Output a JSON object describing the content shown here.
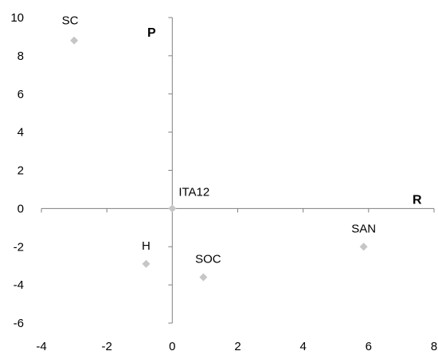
{
  "chart_data": {
    "type": "scatter",
    "title": "",
    "xlabel": "R",
    "ylabel": "P",
    "xlim": [
      -4,
      8
    ],
    "ylim": [
      -6,
      10
    ],
    "x_ticks": [
      "-4",
      "-2",
      "0",
      "2",
      "4",
      "6",
      "8"
    ],
    "y_ticks": [
      "10",
      "8",
      "6",
      "4",
      "2",
      "0",
      "-2",
      "-4",
      "-6"
    ],
    "grid": false,
    "legend": "none",
    "marker": "diamond",
    "colors": {
      "marker": "#c6c6c6",
      "axis": "#808080"
    },
    "points": [
      {
        "label": "SC",
        "x": -3.0,
        "y": 8.8
      },
      {
        "label": "ITA12",
        "x": 0.0,
        "y": 0.0
      },
      {
        "label": "H",
        "x": -0.8,
        "y": -2.9
      },
      {
        "label": "SOC",
        "x": 0.95,
        "y": -3.6
      },
      {
        "label": "SAN",
        "x": 5.85,
        "y": -2.0
      }
    ]
  }
}
